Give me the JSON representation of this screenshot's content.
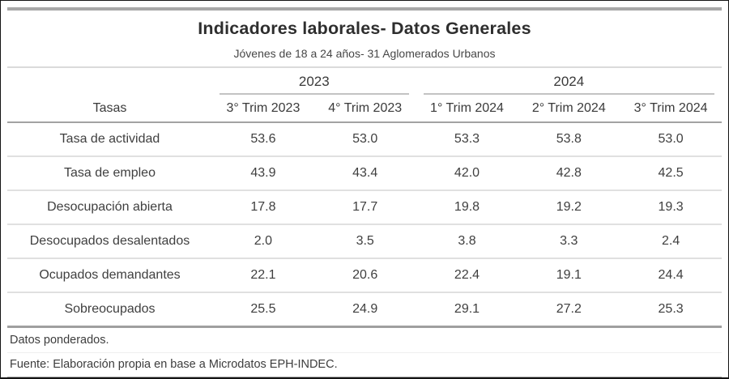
{
  "chart_data": {
    "type": "table",
    "title": "Indicadores laborales- Datos Generales",
    "subtitle": "Jóvenes de 18 a 24 años- 31 Aglomerados Urbanos",
    "row_header": "Tasas",
    "column_groups": [
      {
        "label": "2023",
        "span": 2
      },
      {
        "label": "2024",
        "span": 3
      }
    ],
    "columns": [
      "3° Trim 2023",
      "4° Trim 2023",
      "1° Trim 2024",
      "2° Trim 2024",
      "3° Trim 2024"
    ],
    "rows": [
      {
        "label": "Tasa de actividad",
        "values": [
          "53.6",
          "53.0",
          "53.3",
          "53.8",
          "53.0"
        ]
      },
      {
        "label": "Tasa de empleo",
        "values": [
          "43.9",
          "43.4",
          "42.0",
          "42.8",
          "42.5"
        ]
      },
      {
        "label": "Desocupación abierta",
        "values": [
          "17.8",
          "17.7",
          "19.8",
          "19.2",
          "19.3"
        ]
      },
      {
        "label": "Desocupados desalentados",
        "values": [
          "2.0",
          "3.5",
          "3.8",
          "3.3",
          "2.4"
        ]
      },
      {
        "label": "Ocupados demandantes",
        "values": [
          "22.1",
          "20.6",
          "22.4",
          "19.1",
          "24.4"
        ]
      },
      {
        "label": "Sobreocupados",
        "values": [
          "25.5",
          "24.9",
          "29.1",
          "27.2",
          "25.3"
        ]
      }
    ],
    "notes": {
      "weighting": "Datos ponderados.",
      "source": "Fuente: Elaboración propia en base a Microdatos EPH-INDEC."
    }
  },
  "colors": {
    "rule_gray": "#a8a8a8",
    "separator_light": "#e0e0e0",
    "text_dark": "#2e2e2e",
    "frame_black": "#141414"
  }
}
